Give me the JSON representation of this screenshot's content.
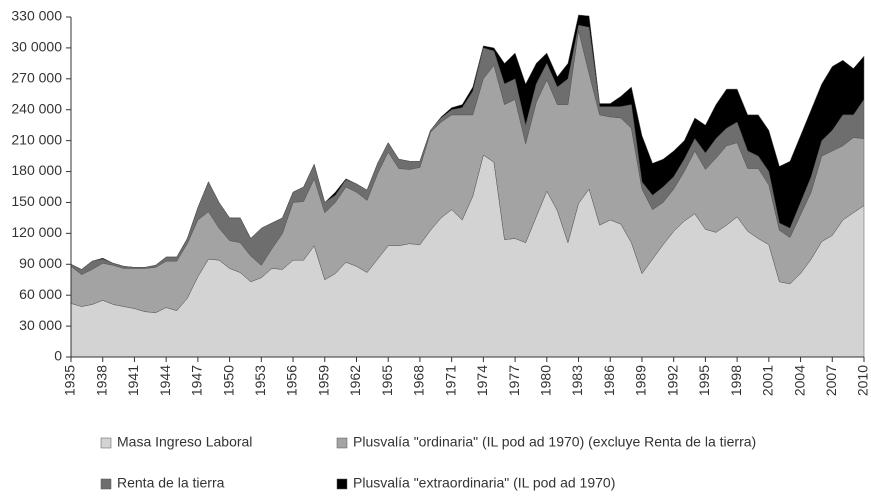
{
  "chart_data": {
    "type": "stacked_area",
    "x": [
      1935,
      1936,
      1937,
      1938,
      1939,
      1940,
      1941,
      1942,
      1943,
      1944,
      1945,
      1946,
      1947,
      1948,
      1949,
      1950,
      1951,
      1952,
      1953,
      1954,
      1955,
      1956,
      1957,
      1958,
      1959,
      1960,
      1961,
      1962,
      1963,
      1964,
      1965,
      1966,
      1967,
      1968,
      1969,
      1970,
      1971,
      1972,
      1973,
      1974,
      1975,
      1976,
      1977,
      1978,
      1979,
      1980,
      1981,
      1982,
      1983,
      1984,
      1985,
      1986,
      1987,
      1988,
      1989,
      1990,
      1991,
      1992,
      1993,
      1994,
      1995,
      1996,
      1997,
      1998,
      1999,
      2000,
      2001,
      2002,
      2003,
      2004,
      2005,
      2006,
      2007,
      2008,
      2009,
      2010
    ],
    "xlim": [
      1935,
      2010
    ],
    "xticks": [
      1935,
      1938,
      1941,
      1944,
      1947,
      1950,
      1953,
      1956,
      1959,
      1962,
      1965,
      1968,
      1971,
      1974,
      1977,
      1980,
      1983,
      1986,
      1989,
      1992,
      1995,
      1998,
      2001,
      2004,
      2007,
      2010
    ],
    "ylim": [
      0,
      330000
    ],
    "yticks": [
      {
        "value": 0,
        "label": "0"
      },
      {
        "value": 30000,
        "label": "30 000"
      },
      {
        "value": 60000,
        "label": "60 000"
      },
      {
        "value": 90000,
        "label": "90 000"
      },
      {
        "value": 120000,
        "label": "120 000"
      },
      {
        "value": 150000,
        "label": "150 000"
      },
      {
        "value": 180000,
        "label": "180 000"
      },
      {
        "value": 210000,
        "label": "210 000"
      },
      {
        "value": 240000,
        "label": "240 000"
      },
      {
        "value": 270000,
        "label": "270 000"
      },
      {
        "value": 300000,
        "label": "30 0000"
      },
      {
        "value": 330000,
        "label": "330 000"
      }
    ],
    "grid": false,
    "legend": "bottom",
    "series": [
      {
        "name": "Masa Ingreso Laboral",
        "color": "#d3d3d3",
        "values": [
          52000,
          49000,
          51000,
          55000,
          51000,
          49000,
          47000,
          44000,
          43000,
          48000,
          45000,
          57000,
          78000,
          95000,
          94000,
          86000,
          82000,
          73000,
          77000,
          86000,
          85000,
          94000,
          94000,
          108000,
          75000,
          81000,
          92000,
          88000,
          82000,
          95000,
          108000,
          108000,
          110000,
          109000,
          123000,
          135000,
          143000,
          133000,
          156000,
          196000,
          189000,
          114000,
          115000,
          111000,
          136000,
          161000,
          142000,
          111000,
          149000,
          163000,
          128000,
          133000,
          129000,
          111000,
          81000,
          95000,
          109000,
          122000,
          132000,
          139000,
          124000,
          121000,
          128000,
          136000,
          122000,
          115000,
          109000,
          73000,
          71000,
          81000,
          95000,
          112000,
          118000,
          133000,
          140000,
          147000
        ]
      },
      {
        "name": "Plusvalía \"ordinaria\" (IL pod ad 1970) (excluye Renta de la tierra)",
        "color": "#a3a3a3",
        "values": [
          36000,
          31000,
          34000,
          36000,
          38000,
          37000,
          39000,
          42000,
          44000,
          45000,
          48000,
          53000,
          55000,
          46000,
          31000,
          27000,
          29000,
          25000,
          12000,
          19000,
          35000,
          56000,
          57000,
          65000,
          65000,
          69000,
          73000,
          72000,
          70000,
          83000,
          91000,
          75000,
          72000,
          75000,
          95000,
          93000,
          92000,
          102000,
          79000,
          74000,
          94000,
          131000,
          135000,
          96000,
          111000,
          108000,
          103000,
          134000,
          168000,
          112000,
          107000,
          100000,
          103000,
          111000,
          82000,
          48000,
          41000,
          41000,
          48000,
          61000,
          58000,
          72000,
          77000,
          72000,
          61000,
          68000,
          58000,
          50000,
          45000,
          57000,
          65000,
          83000,
          82000,
          72000,
          73000,
          65000
        ]
      },
      {
        "name": "Renta de la tierra",
        "color": "#6e6e6e",
        "values": [
          2000,
          5000,
          8000,
          4000,
          2000,
          2000,
          1000,
          1000,
          2000,
          4000,
          4000,
          5000,
          12000,
          29000,
          25000,
          22000,
          24000,
          17000,
          36000,
          25000,
          15000,
          10000,
          14000,
          14000,
          10000,
          7000,
          7000,
          8000,
          10000,
          10000,
          9000,
          9000,
          8000,
          6000,
          2000,
          4000,
          5000,
          7000,
          23000,
          30000,
          14000,
          20000,
          20000,
          18000,
          18000,
          16000,
          17000,
          25000,
          5000,
          45000,
          8000,
          10000,
          11000,
          23000,
          7000,
          14000,
          15000,
          12000,
          12000,
          12000,
          16000,
          19000,
          17000,
          20000,
          17000,
          12000,
          13000,
          7000,
          9000,
          12000,
          15000,
          15000,
          20000,
          30000,
          22000,
          38000
        ]
      },
      {
        "name": "Plusvalía \"extraordinaria\" (IL pod ad 1970)",
        "color": "#000000",
        "values": [
          0,
          0,
          0,
          1000,
          0,
          0,
          0,
          0,
          0,
          0,
          0,
          0,
          0,
          0,
          0,
          0,
          0,
          0,
          0,
          0,
          0,
          0,
          0,
          0,
          0,
          3000,
          1000,
          0,
          0,
          0,
          0,
          0,
          0,
          0,
          0,
          1000,
          2000,
          3000,
          4000,
          2000,
          3000,
          20000,
          25000,
          40000,
          20000,
          10000,
          10000,
          15000,
          10000,
          11000,
          3000,
          3000,
          10000,
          17000,
          45000,
          31000,
          27000,
          25000,
          18000,
          20000,
          27000,
          33000,
          38000,
          32000,
          35000,
          40000,
          40000,
          55000,
          65000,
          65000,
          65000,
          55000,
          62000,
          53000,
          45000,
          42000
        ]
      }
    ]
  }
}
